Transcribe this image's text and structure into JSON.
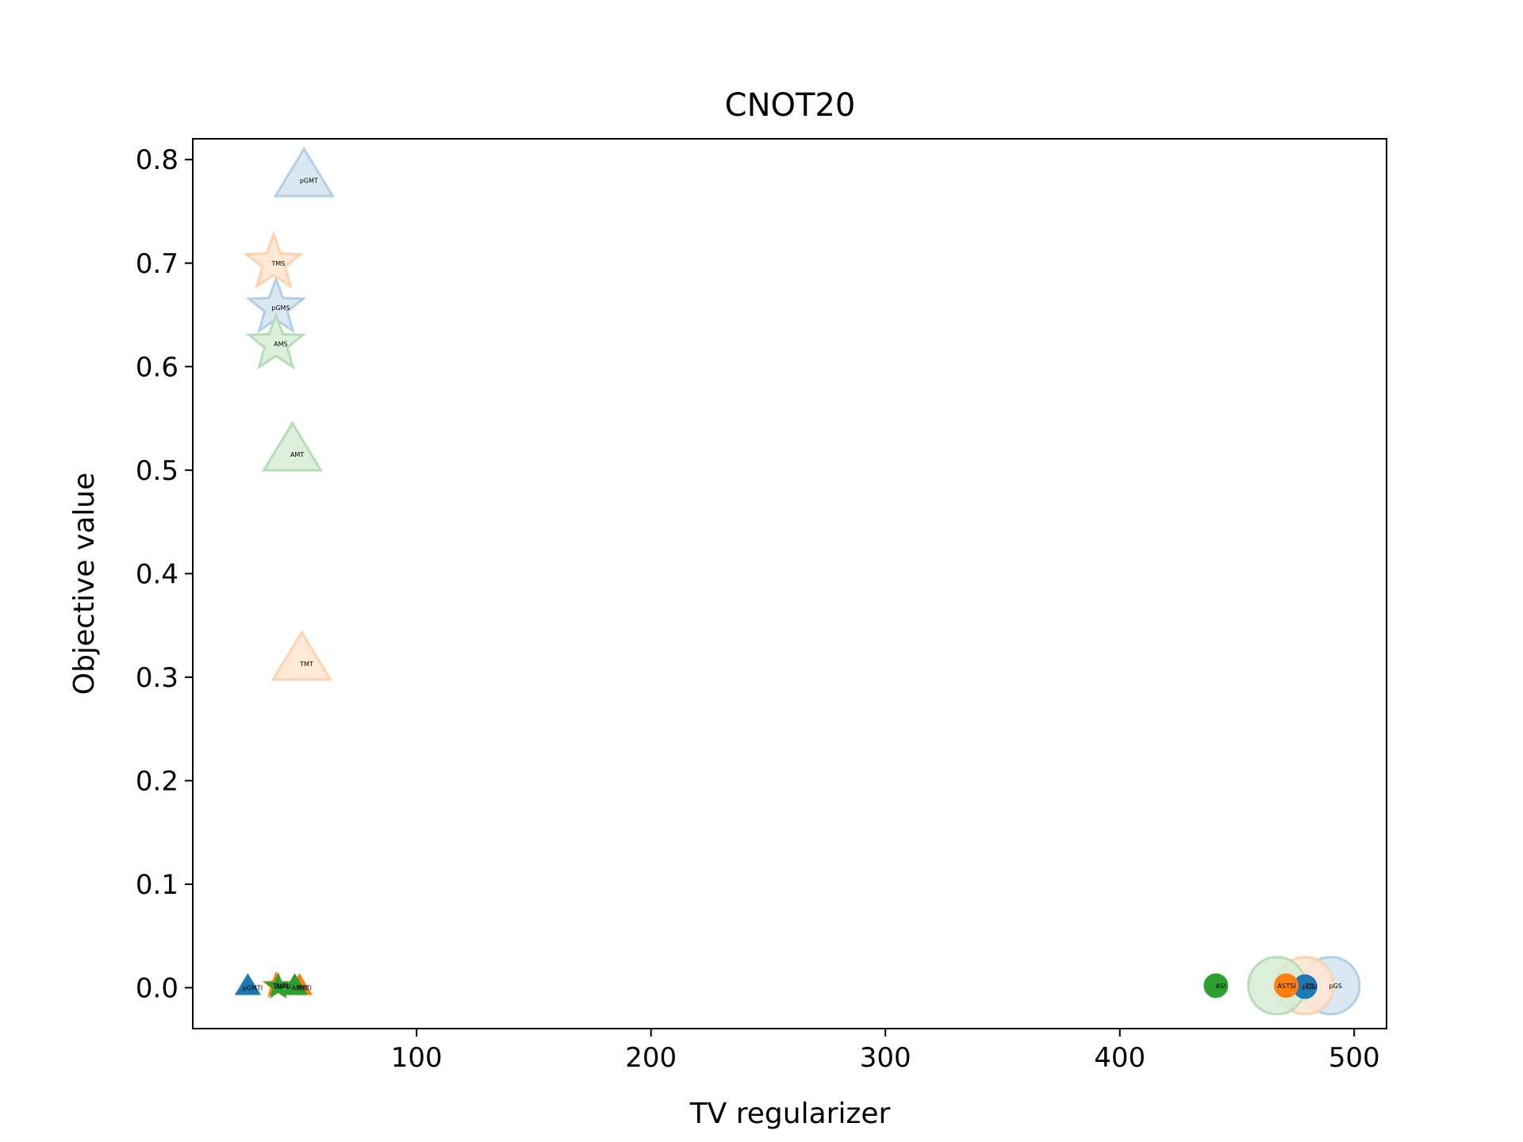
{
  "chart_data": {
    "type": "scatter",
    "title": "CNOT20",
    "xlabel": "TV regularizer",
    "ylabel": "Objective value",
    "xlim": [
      4.5,
      513.8
    ],
    "ylim": [
      -0.0395,
      0.8201
    ],
    "xticks": [
      100,
      200,
      300,
      400,
      500
    ],
    "yticks": [
      0.0,
      0.1,
      0.2,
      0.3,
      0.4,
      0.5,
      0.6,
      0.7,
      0.8
    ],
    "grid": false,
    "legend": "none",
    "colors": {
      "pGM": "#1f77b4",
      "TM": "#ff7f0e",
      "AM": "#2ca02c"
    },
    "series": [
      {
        "color_key": "pGM",
        "points": [
          {
            "label": "pGMT",
            "x": 52,
            "y": 0.78,
            "marker": "triangle",
            "size": "large",
            "alpha": 0.2
          },
          {
            "label": "pGMS",
            "x": 40,
            "y": 0.657,
            "marker": "star",
            "size": "large",
            "alpha": 0.2
          },
          {
            "label": "pGS",
            "x": 490,
            "y": 0.002,
            "marker": "circle",
            "size": "large",
            "alpha": 0.2
          },
          {
            "label": "pGMTI",
            "x": 28,
            "y": 0.0,
            "marker": "triangle",
            "size": "small",
            "alpha": 1.0
          },
          {
            "label": "pGSI",
            "x": 479,
            "y": 0.001,
            "marker": "circle",
            "size": "small",
            "alpha": 1.0
          }
        ]
      },
      {
        "color_key": "TM",
        "points": [
          {
            "label": "TMS",
            "x": 39,
            "y": 0.7,
            "marker": "star",
            "size": "large",
            "alpha": 0.2
          },
          {
            "label": "TMT",
            "x": 51,
            "y": 0.313,
            "marker": "triangle",
            "size": "large",
            "alpha": 0.2
          },
          {
            "label": "TS",
            "x": 479,
            "y": 0.002,
            "marker": "circle",
            "size": "large",
            "alpha": 0.2
          },
          {
            "label": "TMSI",
            "x": 40,
            "y": 0.002,
            "marker": "star",
            "size": "small",
            "alpha": 1.0
          },
          {
            "label": "TMTI",
            "x": 50,
            "y": 0.0,
            "marker": "triangle",
            "size": "small",
            "alpha": 1.0
          },
          {
            "label": "TSI",
            "x": 471,
            "y": 0.002,
            "marker": "circle",
            "size": "small",
            "alpha": 1.0
          }
        ]
      },
      {
        "color_key": "AM",
        "points": [
          {
            "label": "AMS",
            "x": 40,
            "y": 0.622,
            "marker": "star",
            "size": "large",
            "alpha": 0.2
          },
          {
            "label": "AMT",
            "x": 47,
            "y": 0.515,
            "marker": "triangle",
            "size": "large",
            "alpha": 0.2
          },
          {
            "label": "AS",
            "x": 467,
            "y": 0.002,
            "marker": "circle",
            "size": "large",
            "alpha": 0.2
          },
          {
            "label": "AMSI",
            "x": 41,
            "y": 0.001,
            "marker": "star",
            "size": "small",
            "alpha": 1.0
          },
          {
            "label": "AMTI",
            "x": 48,
            "y": 0.0,
            "marker": "triangle",
            "size": "small",
            "alpha": 1.0
          },
          {
            "label": "ASI",
            "x": 441,
            "y": 0.002,
            "marker": "circle",
            "size": "small",
            "alpha": 1.0
          }
        ]
      }
    ]
  }
}
